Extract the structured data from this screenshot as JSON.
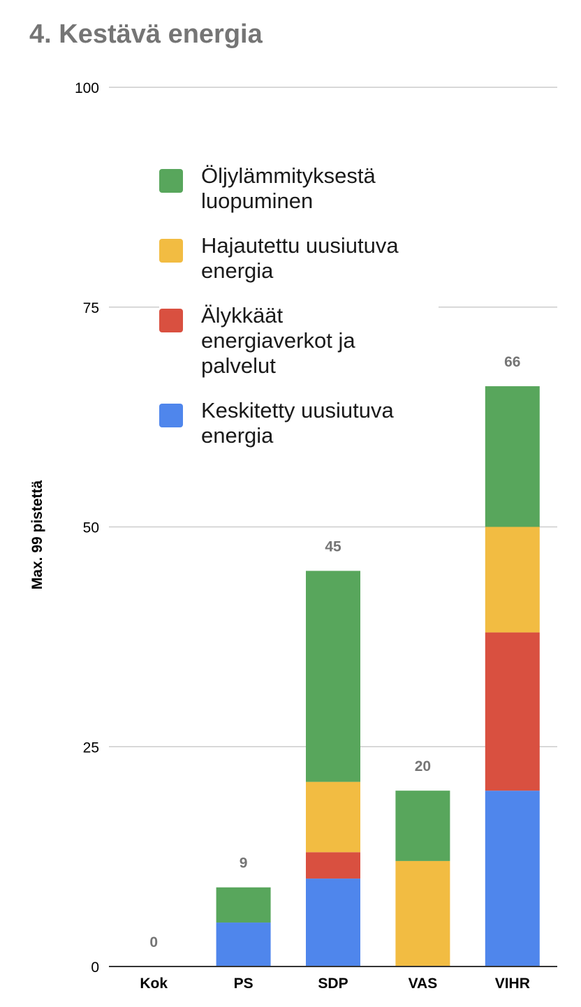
{
  "title": "4. Kestävä energia",
  "chart_data": {
    "type": "bar",
    "stacked": true,
    "title": "4. Kestävä energia",
    "xlabel": "",
    "ylabel": "Max. 99 pistettä",
    "ylim": [
      0,
      100
    ],
    "yticks": [
      "0",
      "25",
      "50",
      "75",
      "100"
    ],
    "categories": [
      "Kok",
      "PS",
      "SDP",
      "VAS",
      "VIHR"
    ],
    "totals": [
      "0",
      "9",
      "45",
      "20",
      "66"
    ],
    "series": [
      {
        "name": "Keskitetty uusiutuva energia",
        "color": "#4F86EC",
        "values": [
          0,
          5,
          10,
          0,
          20
        ]
      },
      {
        "name": "Älykkäät energiaverkot ja palvelut",
        "color": "#D95040",
        "values": [
          0,
          0,
          3,
          0,
          18
        ]
      },
      {
        "name": "Hajautettu uusiutuva energia",
        "color": "#F2BC42",
        "values": [
          0,
          0,
          8,
          12,
          12
        ]
      },
      {
        "name": "Öljylämmityksestä luopuminen",
        "color": "#58A65C",
        "values": [
          0,
          4,
          24,
          8,
          16
        ]
      }
    ],
    "legend_order": [
      3,
      2,
      1,
      0
    ],
    "legend_position": "inside top-left",
    "grid": true
  }
}
